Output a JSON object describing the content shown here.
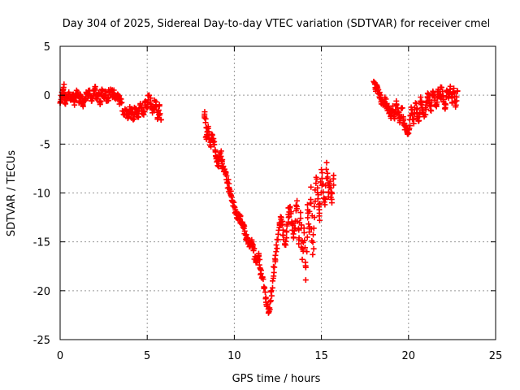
{
  "chart_data": {
    "type": "scatter",
    "title": "Day 304 of 2025, Sidereal Day-to-day VTEC variation (SDTVAR) for receiver cmel",
    "xlabel": "GPS time / hours",
    "ylabel": "SDTVAR / TECUs",
    "xlim": [
      0,
      25
    ],
    "ylim": [
      -25,
      5
    ],
    "x_ticks": [
      "0",
      "5",
      "10",
      "15",
      "20",
      "25"
    ],
    "y_ticks": [
      "5",
      "0",
      "-5",
      "-10",
      "-15",
      "-20",
      "-25"
    ],
    "grid": true,
    "marker": "+",
    "color": "#ff0000",
    "series": [
      {
        "name": "SDTVAR",
        "points": [
          [
            0.0,
            -0.8
          ],
          [
            0.1,
            -0.2
          ],
          [
            0.15,
            0.5
          ],
          [
            0.2,
            0.8
          ],
          [
            0.25,
            -0.3
          ],
          [
            0.3,
            -0.9
          ],
          [
            0.4,
            -0.2
          ],
          [
            0.5,
            0.3
          ],
          [
            0.6,
            -0.5
          ],
          [
            0.7,
            0.0
          ],
          [
            0.8,
            -0.7
          ],
          [
            0.9,
            -0.3
          ],
          [
            1.0,
            0.2
          ],
          [
            1.1,
            -0.6
          ],
          [
            1.2,
            -0.1
          ],
          [
            1.3,
            -0.9
          ],
          [
            1.4,
            -0.4
          ],
          [
            1.5,
            0.3
          ],
          [
            1.6,
            -0.3
          ],
          [
            1.7,
            0.5
          ],
          [
            1.8,
            -0.6
          ],
          [
            1.9,
            -0.1
          ],
          [
            2.0,
            0.7
          ],
          [
            2.1,
            -0.4
          ],
          [
            2.2,
            0.2
          ],
          [
            2.3,
            -0.9
          ],
          [
            2.4,
            0.6
          ],
          [
            2.5,
            -0.2
          ],
          [
            2.6,
            0.4
          ],
          [
            2.7,
            -0.6
          ],
          [
            2.8,
            0.3
          ],
          [
            2.9,
            0.6
          ],
          [
            3.0,
            -0.1
          ],
          [
            3.1,
            0.2
          ],
          [
            3.2,
            -0.4
          ],
          [
            3.3,
            0.1
          ],
          [
            3.4,
            -0.5
          ],
          [
            3.5,
            -0.8
          ],
          [
            3.7,
            -2.0
          ],
          [
            3.8,
            -1.5
          ],
          [
            3.9,
            -2.3
          ],
          [
            4.0,
            -1.2
          ],
          [
            4.1,
            -1.8
          ],
          [
            4.2,
            -2.5
          ],
          [
            4.3,
            -1.4
          ],
          [
            4.4,
            -1.7
          ],
          [
            4.5,
            -2.2
          ],
          [
            4.6,
            -1.0
          ],
          [
            4.7,
            -1.6
          ],
          [
            4.8,
            -2.0
          ],
          [
            4.9,
            -0.6
          ],
          [
            5.0,
            -1.3
          ],
          [
            5.1,
            0.0
          ],
          [
            5.2,
            -0.9
          ],
          [
            5.3,
            -1.8
          ],
          [
            5.4,
            -1.2
          ],
          [
            5.5,
            -0.7
          ],
          [
            5.6,
            -2.3
          ],
          [
            5.7,
            -1.1
          ],
          [
            5.8,
            -2.5
          ],
          [
            8.3,
            -1.7
          ],
          [
            8.35,
            -2.8
          ],
          [
            8.4,
            -4.5
          ],
          [
            8.5,
            -3.2
          ],
          [
            8.6,
            -5.1
          ],
          [
            8.7,
            -4.0
          ],
          [
            8.8,
            -4.8
          ],
          [
            8.9,
            -5.6
          ],
          [
            9.0,
            -6.4
          ],
          [
            9.1,
            -7.2
          ],
          [
            9.2,
            -5.9
          ],
          [
            9.3,
            -6.8
          ],
          [
            9.4,
            -7.8
          ],
          [
            9.5,
            -8.1
          ],
          [
            9.6,
            -8.9
          ],
          [
            9.7,
            -9.5
          ],
          [
            9.8,
            -10.2
          ],
          [
            9.9,
            -10.8
          ],
          [
            10.0,
            -11.4
          ],
          [
            10.1,
            -11.9
          ],
          [
            10.2,
            -12.6
          ],
          [
            10.3,
            -12.2
          ],
          [
            10.4,
            -13.0
          ],
          [
            10.5,
            -13.5
          ],
          [
            10.6,
            -13.9
          ],
          [
            10.7,
            -14.6
          ],
          [
            10.8,
            -15.0
          ],
          [
            10.9,
            -15.4
          ],
          [
            11.0,
            -14.8
          ],
          [
            11.1,
            -15.9
          ],
          [
            11.2,
            -16.5
          ],
          [
            11.3,
            -17.1
          ],
          [
            11.4,
            -16.2
          ],
          [
            11.5,
            -17.8
          ],
          [
            11.6,
            -18.6
          ],
          [
            11.7,
            -19.6
          ],
          [
            11.8,
            -20.8
          ],
          [
            11.9,
            -21.6
          ],
          [
            12.0,
            -22.1
          ],
          [
            12.1,
            -21.0
          ],
          [
            12.2,
            -19.0
          ],
          [
            12.3,
            -17.6
          ],
          [
            12.4,
            -16.0
          ],
          [
            12.5,
            -14.8
          ],
          [
            12.6,
            -13.2
          ],
          [
            12.7,
            -12.5
          ],
          [
            12.8,
            -13.8
          ],
          [
            12.9,
            -15.2
          ],
          [
            13.0,
            -14.0
          ],
          [
            13.1,
            -12.2
          ],
          [
            13.2,
            -11.4
          ],
          [
            13.3,
            -13.1
          ],
          [
            13.4,
            -14.6
          ],
          [
            13.5,
            -12.9
          ],
          [
            13.6,
            -10.8
          ],
          [
            13.7,
            -15.2
          ],
          [
            13.8,
            -12.0
          ],
          [
            13.9,
            -16.8
          ],
          [
            14.0,
            -13.6
          ],
          [
            14.1,
            -18.9
          ],
          [
            14.2,
            -11.2
          ],
          [
            14.3,
            -14.0
          ],
          [
            14.4,
            -9.4
          ],
          [
            14.5,
            -16.3
          ],
          [
            14.6,
            -12.5
          ],
          [
            14.7,
            -8.4
          ],
          [
            14.8,
            -10.6
          ],
          [
            14.9,
            -12.8
          ],
          [
            15.0,
            -7.6
          ],
          [
            15.1,
            -9.9
          ],
          [
            15.2,
            -11.2
          ],
          [
            15.3,
            -6.9
          ],
          [
            15.4,
            -10.4
          ],
          [
            15.5,
            -8.8
          ],
          [
            15.6,
            -11.0
          ],
          [
            15.7,
            -8.2
          ],
          [
            18.0,
            1.4
          ],
          [
            18.1,
            0.6
          ],
          [
            18.2,
            0.9
          ],
          [
            18.3,
            0.2
          ],
          [
            18.4,
            -0.2
          ],
          [
            18.5,
            -0.6
          ],
          [
            18.6,
            -1.0
          ],
          [
            18.7,
            -0.4
          ],
          [
            18.8,
            -1.3
          ],
          [
            18.9,
            -1.8
          ],
          [
            19.0,
            -2.1
          ],
          [
            19.1,
            -1.1
          ],
          [
            19.2,
            -2.4
          ],
          [
            19.3,
            -0.6
          ],
          [
            19.4,
            -1.7
          ],
          [
            19.5,
            -2.8
          ],
          [
            19.6,
            -1.3
          ],
          [
            19.7,
            -2.6
          ],
          [
            19.8,
            -3.1
          ],
          [
            19.9,
            -3.5
          ],
          [
            20.0,
            -3.9
          ],
          [
            20.1,
            -2.1
          ],
          [
            20.2,
            -1.5
          ],
          [
            20.3,
            -2.9
          ],
          [
            20.4,
            -0.8
          ],
          [
            20.5,
            -1.9
          ],
          [
            20.6,
            -2.6
          ],
          [
            20.7,
            -0.2
          ],
          [
            20.8,
            -1.4
          ],
          [
            20.9,
            -2.2
          ],
          [
            21.0,
            -1.0
          ],
          [
            21.1,
            0.2
          ],
          [
            21.2,
            -0.5
          ],
          [
            21.3,
            -1.6
          ],
          [
            21.4,
            0.4
          ],
          [
            21.5,
            -0.3
          ],
          [
            21.6,
            -1.1
          ],
          [
            21.7,
            0.6
          ],
          [
            21.8,
            -0.2
          ],
          [
            21.9,
            0.8
          ],
          [
            22.0,
            -0.6
          ],
          [
            22.1,
            -1.4
          ],
          [
            22.2,
            0.5
          ],
          [
            22.3,
            -0.3
          ],
          [
            22.4,
            0.9
          ],
          [
            22.5,
            -0.8
          ],
          [
            22.6,
            0.7
          ],
          [
            22.7,
            -1.2
          ],
          [
            22.8,
            0.4
          ]
        ]
      }
    ]
  }
}
